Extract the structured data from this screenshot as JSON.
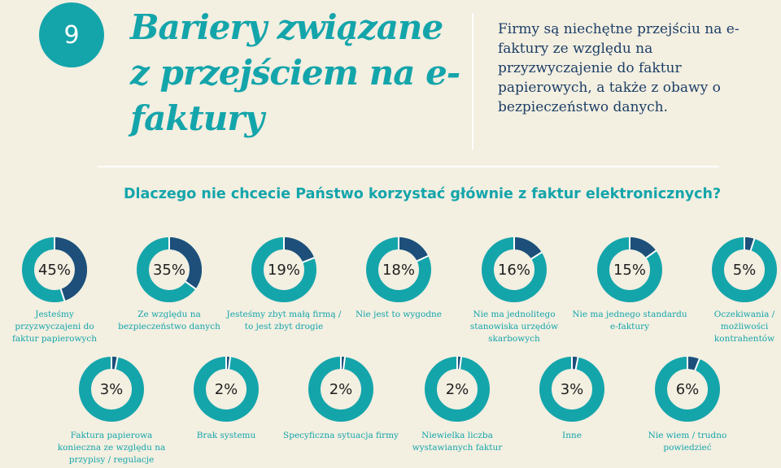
{
  "header": {
    "number": "9",
    "title": "Bariery związane z przejściem na e-faktury",
    "intro": "Firmy są niechętne przejściu na e-faktury ze względu na przyzwyczajenie do faktur papierowych, a także z obawy o bezpieczeństwo danych."
  },
  "colors": {
    "accent": "#14a5ab",
    "dark": "#1d3f66",
    "ring_track": "#14a5ab",
    "ring_value": "#1d4f7a",
    "background": "#f3efe1"
  },
  "chart_data": {
    "type": "pie",
    "title": "Dlaczego nie chcecie Państwo korzystać głównie z faktur elektronicznych?",
    "items": [
      {
        "value": 45,
        "label": "45%",
        "text": "Jesteśmy przyzwyczajeni do faktur papierowych"
      },
      {
        "value": 35,
        "label": "35%",
        "text": "Ze względu na bezpieczeństwo danych"
      },
      {
        "value": 19,
        "label": "19%",
        "text": "Jesteśmy zbyt małą firmą / to jest zbyt drogie"
      },
      {
        "value": 18,
        "label": "18%",
        "text": "Nie jest to wygodne"
      },
      {
        "value": 16,
        "label": "16%",
        "text": "Nie ma jednolitego stanowiska urzędów skarbowych"
      },
      {
        "value": 15,
        "label": "15%",
        "text": "Nie ma jednego standardu e-faktury"
      },
      {
        "value": 5,
        "label": "5%",
        "text": "Oczekiwania / możliwości kontrahentów"
      },
      {
        "value": 3,
        "label": "3%",
        "text": "Faktura papierowa konieczna ze względu na przypisy / regulacje"
      },
      {
        "value": 2,
        "label": "2%",
        "text": "Brak systemu"
      },
      {
        "value": 2,
        "label": "2%",
        "text": "Specyficzna sytuacja firmy"
      },
      {
        "value": 2,
        "label": "2%",
        "text": "Niewielka liczba wystawianych faktur"
      },
      {
        "value": 3,
        "label": "3%",
        "text": "Inne"
      },
      {
        "value": 6,
        "label": "6%",
        "text": "Nie wiem / trudno powiedzieć"
      }
    ]
  }
}
